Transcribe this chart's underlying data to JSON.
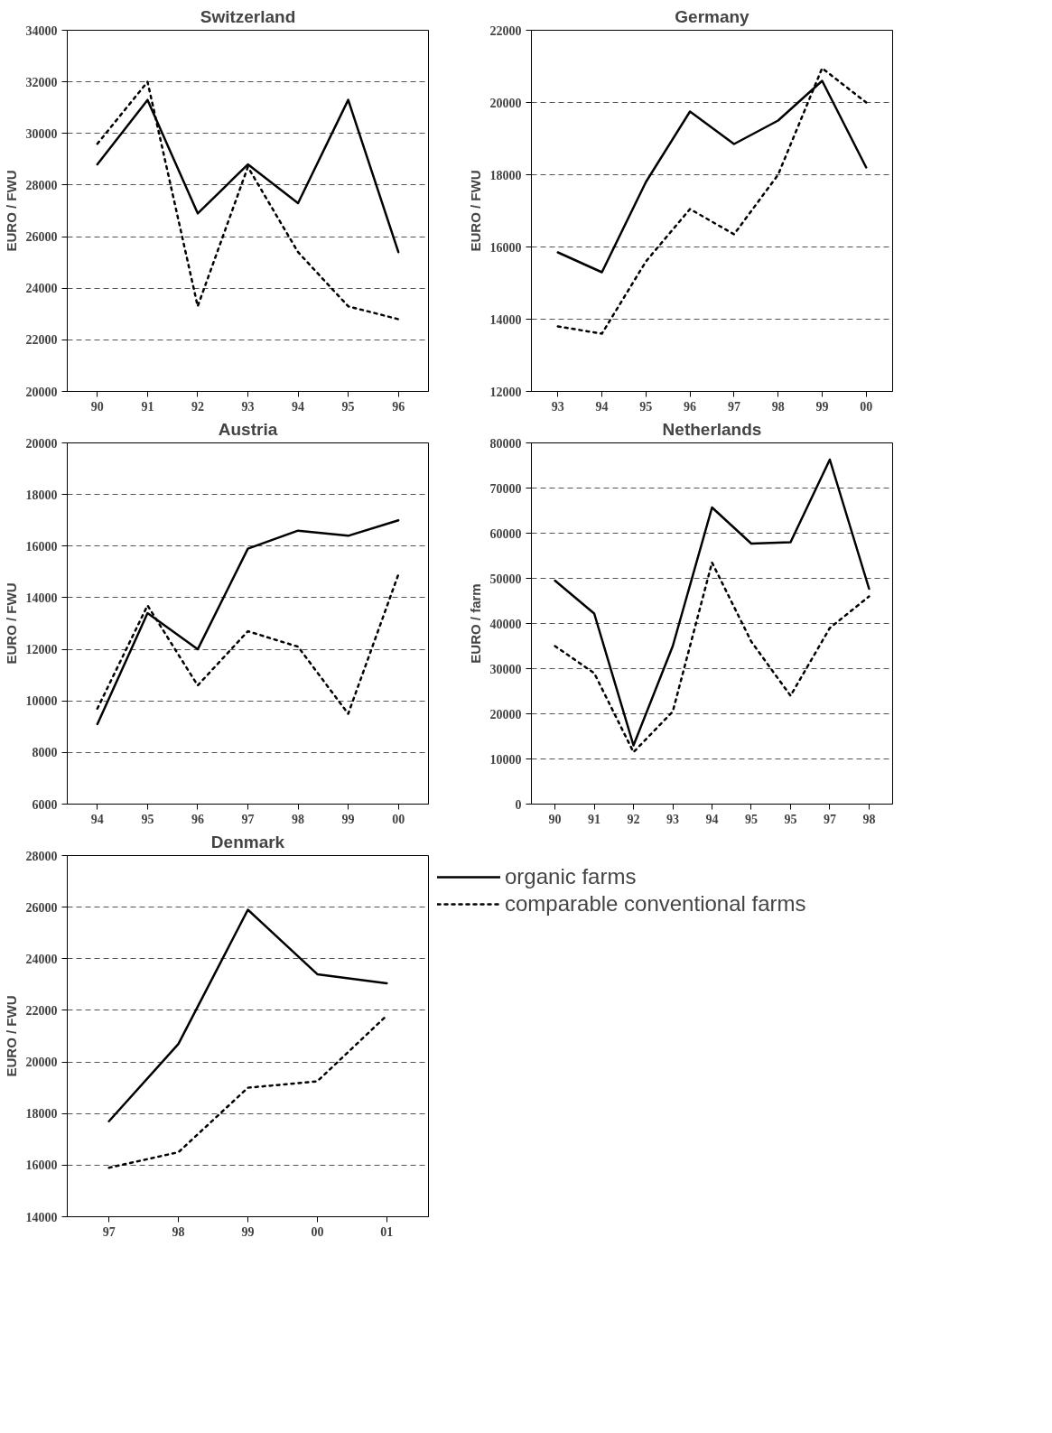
{
  "chart_data": [
    {
      "type": "line",
      "title": "Switzerland",
      "ylabel": "EURO / FWU",
      "categories": [
        "90",
        "91",
        "92",
        "93",
        "94",
        "95",
        "96"
      ],
      "ylim": [
        20000,
        34000
      ],
      "yticks": [
        20000,
        22000,
        24000,
        26000,
        28000,
        30000,
        32000,
        34000
      ],
      "grid": "y",
      "series": [
        {
          "color": "#000000",
          "line_style": "solid",
          "values": [
            28800,
            31300,
            26900,
            28800,
            27300,
            31300,
            25400
          ]
        },
        {
          "color": "#000000",
          "line_style": "dashed",
          "values": [
            29600,
            32000,
            23300,
            28700,
            25400,
            23300,
            22800
          ]
        }
      ]
    },
    {
      "type": "line",
      "title": "Germany",
      "ylabel": "EURO / FWU",
      "categories": [
        "93",
        "94",
        "95",
        "96",
        "97",
        "98",
        "99",
        "00"
      ],
      "ylim": [
        12000,
        22000
      ],
      "yticks": [
        12000,
        14000,
        16000,
        18000,
        20000,
        22000
      ],
      "grid": "y",
      "series": [
        {
          "color": "#000000",
          "line_style": "solid",
          "values": [
            15850,
            15300,
            17800,
            19750,
            18850,
            19500,
            20600,
            18200
          ]
        },
        {
          "color": "#000000",
          "line_style": "dashed",
          "values": [
            13800,
            13600,
            15600,
            17050,
            16350,
            18000,
            20950,
            20000
          ]
        }
      ]
    },
    {
      "type": "line",
      "title": "Austria",
      "ylabel": "EURO / FWU",
      "categories": [
        "94",
        "95",
        "96",
        "97",
        "98",
        "99",
        "00"
      ],
      "ylim": [
        6000,
        20000
      ],
      "yticks": [
        6000,
        8000,
        10000,
        12000,
        14000,
        16000,
        18000,
        20000
      ],
      "grid": "y",
      "series": [
        {
          "color": "#000000",
          "line_style": "solid",
          "values": [
            9100,
            13400,
            12000,
            15900,
            16600,
            16400,
            17000
          ]
        },
        {
          "color": "#000000",
          "line_style": "dashed",
          "values": [
            9700,
            13700,
            10600,
            12700,
            12100,
            9500,
            14900
          ]
        }
      ]
    },
    {
      "type": "line",
      "title": "Netherlands",
      "ylabel": "EURO / farm",
      "categories": [
        "90",
        "91",
        "92",
        "93",
        "94",
        "95",
        "95",
        "97",
        "98"
      ],
      "ylim": [
        0,
        80000
      ],
      "yticks": [
        0,
        10000,
        20000,
        30000,
        40000,
        50000,
        60000,
        70000,
        80000
      ],
      "grid": "y",
      "series": [
        {
          "color": "#000000",
          "line_style": "solid",
          "values": [
            49500,
            42200,
            13000,
            35000,
            65700,
            57700,
            58000,
            76300,
            47700
          ]
        },
        {
          "color": "#000000",
          "line_style": "dashed",
          "values": [
            35000,
            29000,
            11500,
            20500,
            53500,
            36000,
            24000,
            39000,
            46000
          ]
        }
      ]
    },
    {
      "type": "line",
      "title": "Denmark",
      "ylabel": "EURO / FWU",
      "categories": [
        "97",
        "98",
        "99",
        "00",
        "01"
      ],
      "ylim": [
        14000,
        28000
      ],
      "yticks": [
        14000,
        16000,
        18000,
        20000,
        22000,
        24000,
        26000,
        28000
      ],
      "grid": "y",
      "legend": "right",
      "series": [
        {
          "name": "organic farms",
          "color": "#000000",
          "line_style": "solid",
          "values": [
            17700,
            20700,
            25900,
            23400,
            23050
          ]
        },
        {
          "name": "comparable conventional farms",
          "color": "#000000",
          "line_style": "dashed",
          "values": [
            15900,
            16500,
            19000,
            19250,
            21800
          ]
        }
      ]
    }
  ]
}
